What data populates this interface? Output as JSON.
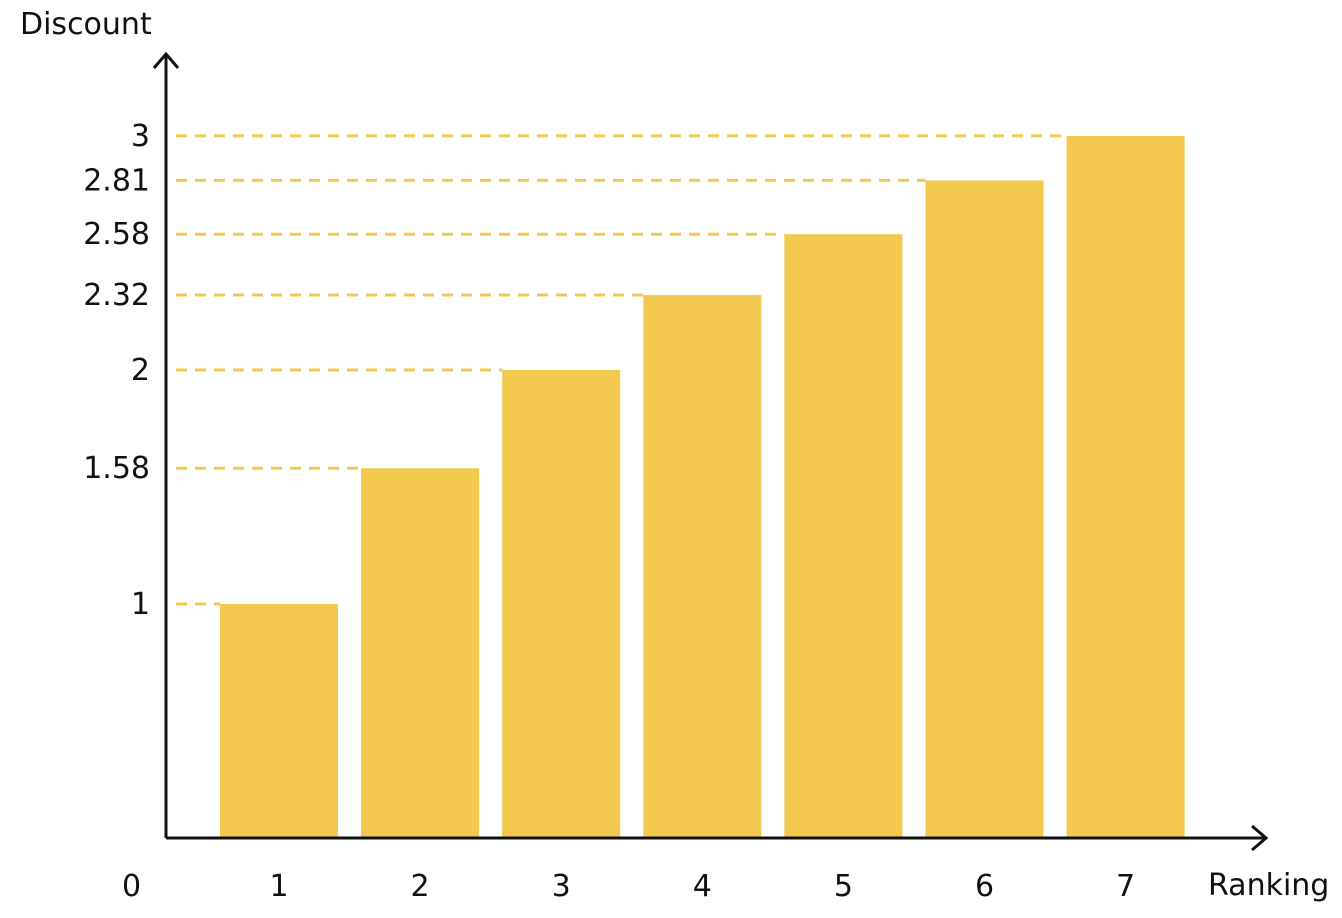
{
  "chart_data": {
    "type": "bar",
    "xlabel": "Ranking",
    "ylabel": "Discount",
    "origin_label": "0",
    "categories": [
      "1",
      "2",
      "3",
      "4",
      "5",
      "6",
      "7"
    ],
    "values": [
      1,
      1.58,
      2,
      2.32,
      2.58,
      2.81,
      3
    ],
    "ytick_labels": [
      "1",
      "1.58",
      "2",
      "2.32",
      "2.58",
      "2.81",
      "3"
    ],
    "ylim": [
      0,
      3.35
    ],
    "grid": "dashed reference lines from y-axis to each bar top",
    "legend": "none",
    "colors": {
      "bar": "#F2C94C",
      "guide": "#F2C94C",
      "axis": "#111111",
      "text": "#111111"
    }
  }
}
